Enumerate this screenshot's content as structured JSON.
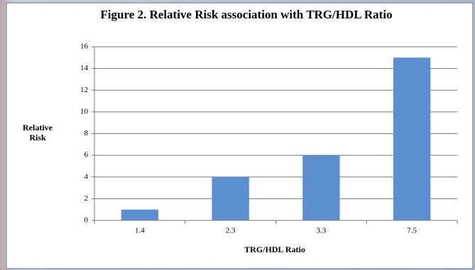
{
  "chart_data": {
    "type": "bar",
    "title": "Figure 2. Relative Risk association with TRG/HDL Ratio",
    "x_label": "TRG/HDL Ratio",
    "y_label": "Relative Risk",
    "categories": [
      "1.4",
      "2.3",
      "3.3",
      "7.5"
    ],
    "values": [
      1,
      4,
      6,
      15
    ],
    "color": "#5b8fd0",
    "ylim": [
      0,
      16
    ],
    "yticks": [
      0,
      2,
      4,
      6,
      8,
      10,
      12,
      14,
      16
    ],
    "grid": true
  }
}
